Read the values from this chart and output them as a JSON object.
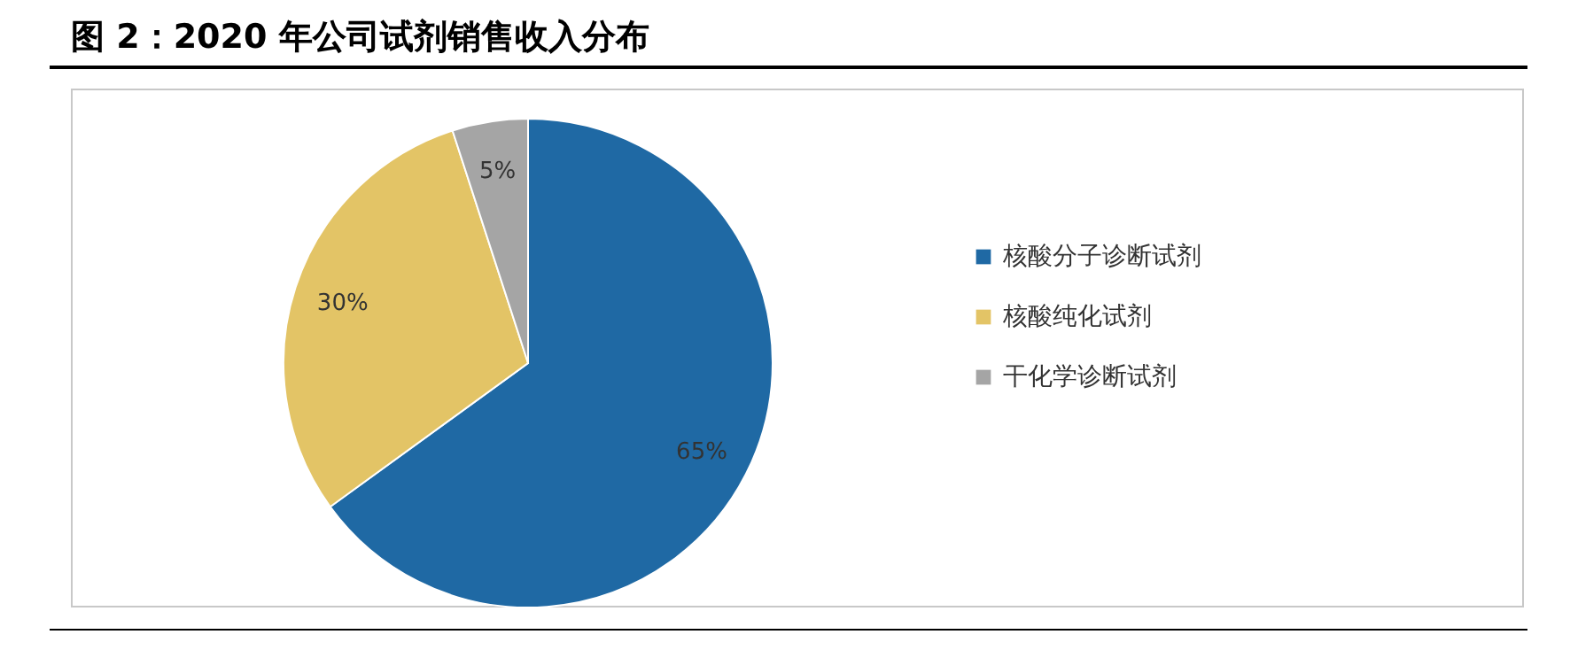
{
  "chart_data": {
    "type": "pie",
    "title": "图 2：2020 年公司试剂销售收入分布",
    "categories": [
      "核酸分子诊断试剂",
      "核酸纯化试剂",
      "干化学诊断试剂"
    ],
    "values": [
      65,
      30,
      5
    ],
    "colors": [
      "#1f69a4",
      "#e3c466",
      "#a5a5a5"
    ],
    "value_labels": [
      "65%",
      "30%",
      "5%"
    ],
    "legend": "right"
  }
}
